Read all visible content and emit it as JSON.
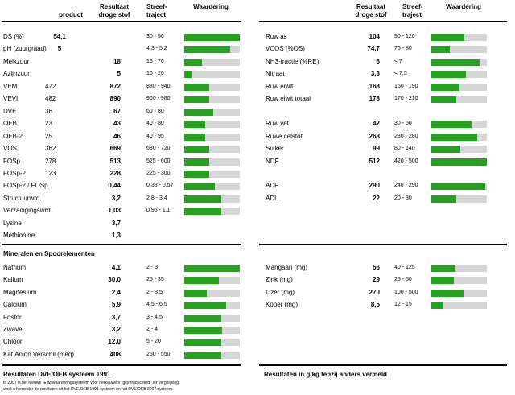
{
  "headers": {
    "product": "product",
    "result": [
      "Resultaat",
      "droge stof"
    ],
    "target": [
      "Streef-",
      "traject"
    ],
    "rating": "Waardering"
  },
  "left_main": [
    {
      "label": "DS (%)",
      "product": "54,1",
      "value": "",
      "range": "30 - 50",
      "fill": 1.0
    },
    {
      "label": "pH (zuurgraad)",
      "product": "5",
      "value": "",
      "range": "4,3 - 5,2",
      "fill": 0.82
    },
    {
      "label": "Melkzuur",
      "product": "",
      "value": "18",
      "range": "15 - 70",
      "fill": 0.32
    },
    {
      "label": "Azijnzuur",
      "product": "",
      "value": "5",
      "range": "10 - 20",
      "fill": 0.13
    },
    {
      "label": "VEM",
      "product": "472",
      "value": "872",
      "range": "880 - 940",
      "fill": 0.45
    },
    {
      "label": "VEVI",
      "product": "482",
      "value": "890",
      "range": "900 - 980",
      "fill": 0.45
    },
    {
      "label": "DVE",
      "product": "36",
      "value": "67",
      "range": "60 - 80",
      "fill": 0.52
    },
    {
      "label": "OEB",
      "product": "23",
      "value": "43",
      "range": "40 - 80",
      "fill": 0.37
    },
    {
      "label": "OEB-2",
      "product": "25",
      "value": "46",
      "range": "40 - 95",
      "fill": 0.37
    },
    {
      "label": "VOS",
      "product": "362",
      "value": "669",
      "range": "680 - 720",
      "fill": 0.45
    },
    {
      "label": "FOSp",
      "product": "278",
      "value": "513",
      "range": "525 - 600",
      "fill": 0.45
    },
    {
      "label": "FOSp-2",
      "product": "123",
      "value": "228",
      "range": "225 - 300",
      "fill": 0.45
    },
    {
      "label": "FOSp-2 / FOSp",
      "product": "",
      "value": "0,44",
      "range": "0,38 - 0,57",
      "fill": 0.55
    },
    {
      "label": "Structuurwrd.",
      "product": "",
      "value": "3,2",
      "range": "2,8 - 3,4",
      "fill": 0.67
    },
    {
      "label": "Verzadigingswrd.",
      "product": "",
      "value": "1,03",
      "range": "0,95 - 1,1",
      "fill": 0.67
    },
    {
      "label": "Lysine",
      "product": "",
      "value": "3,7",
      "range": "",
      "fill": null
    },
    {
      "label": "Methionine",
      "product": "",
      "value": "1,3",
      "range": "",
      "fill": null
    }
  ],
  "right_main": [
    {
      "label": "Ruw as",
      "value": "104",
      "range": "90 - 120",
      "fill": 0.6
    },
    {
      "label": "VCOS (%OS)",
      "value": "74,7",
      "range": "76 - 80",
      "fill": 0.33
    },
    {
      "label": "NH3-fractie (%RE)",
      "value": "6",
      "range": "< 7",
      "fill": 0.87
    },
    {
      "label": "Nitraat",
      "value": "3,3",
      "range": "< 7,5",
      "fill": 0.63
    },
    {
      "label": "Ruw eiwit",
      "value": "168",
      "range": "160 - 190",
      "fill": 0.5
    },
    {
      "label": "Ruw eiwit totaal",
      "value": "178",
      "range": "170 - 210",
      "fill": 0.45
    },
    {
      "label": "",
      "value": "",
      "range": "",
      "fill": null
    },
    {
      "label": "Ruw vet",
      "value": "42",
      "range": "30 - 50",
      "fill": 0.72
    },
    {
      "label": "Ruwe celstof",
      "value": "268",
      "range": "230 - 280",
      "fill": 0.82
    },
    {
      "label": "Suiker",
      "value": "99",
      "range": "80 - 140",
      "fill": 0.52
    },
    {
      "label": "NDF",
      "value": "512",
      "range": "420 - 500",
      "fill": 1.0
    },
    {
      "label": "",
      "value": "",
      "range": "",
      "fill": null
    },
    {
      "label": "ADF",
      "value": "290",
      "range": "240 - 290",
      "fill": 0.97
    },
    {
      "label": "ADL",
      "value": "22",
      "range": "20 - 30",
      "fill": 0.45
    }
  ],
  "minerals_title": "Mineralen en Spoorelementen",
  "left_minerals": [
    {
      "label": "Natrium",
      "value": "4,1",
      "range": "2 - 3",
      "fill": 1.0
    },
    {
      "label": "Kalium",
      "value": "30,0",
      "range": "25 - 35",
      "fill": 0.62
    },
    {
      "label": "Magnesium",
      "value": "2,4",
      "range": "2 - 3,5",
      "fill": 0.4
    },
    {
      "label": "Calcium",
      "value": "5,9",
      "range": "4,5 - 6,5",
      "fill": 0.76
    },
    {
      "label": "Fosfor",
      "value": "3,7",
      "range": "3 - 4,5",
      "fill": 0.66
    },
    {
      "label": "Zwavel",
      "value": "3,2",
      "range": "2 - 4",
      "fill": 0.68
    },
    {
      "label": "Chloor",
      "value": "12,0",
      "range": "5 - 20",
      "fill": 0.66
    },
    {
      "label": "Kat.Anion Verschil (meq)",
      "value": "408",
      "range": "250 - 550",
      "fill": 0.66
    }
  ],
  "right_minerals": [
    {
      "label": "Mangaan (mg)",
      "value": "56",
      "range": "40 - 125",
      "fill": 0.43
    },
    {
      "label": "Zink (mg)",
      "value": "29",
      "range": "25 - 50",
      "fill": 0.4
    },
    {
      "label": "IJzer (mg)",
      "value": "270",
      "range": "100 - 500",
      "fill": 0.58
    },
    {
      "label": "Koper (mg)",
      "value": "8,5",
      "range": "12 - 15",
      "fill": 0.22
    }
  ],
  "footer": {
    "left_title": "Resultaten DVE/OEB systeem 1991",
    "left_note_1": "In 2007 is het nieuwe \"Eiwitwaarderingssysteem voor herkauwers\" geïntroduceerd. Ter vergelijking",
    "left_note_2": "vindt u hieronder de resultaten uit het DVE/OEB 1991 systeem en het DVE/OEB 2007 systeem.",
    "right_title": "Resultaten in g/kg tenzij anders vermeld"
  },
  "colors": {
    "bar_fill": "#27a021",
    "bar_track": "#d6d6d6"
  }
}
